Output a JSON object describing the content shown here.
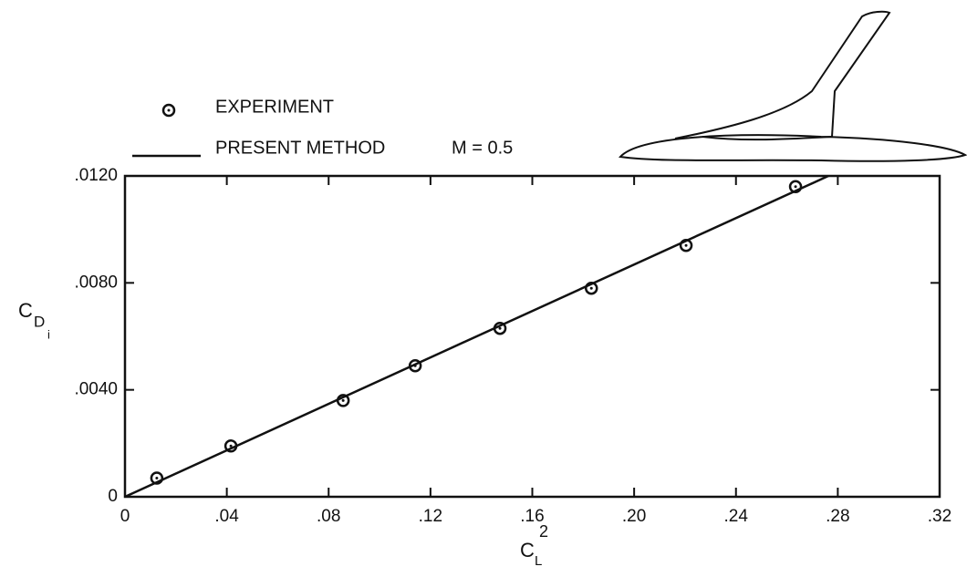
{
  "chart_data": {
    "type": "line",
    "legend": "top-left",
    "annotation": "M = 0.5",
    "x_label": {
      "main": "C",
      "sub": "L",
      "sup": "2"
    },
    "y_label": {
      "main": "C",
      "sub": "D",
      "subsub": "i"
    },
    "xlim": [
      0,
      0.32
    ],
    "ylim": [
      0,
      0.012
    ],
    "xticks": [
      0,
      {
        "value": 0.04,
        "label": ".04"
      },
      {
        "value": 0.08,
        "label": ".08"
      },
      {
        "value": 0.12,
        "label": ".12"
      },
      {
        "value": 0.16,
        "label": ".16"
      },
      {
        "value": 0.2,
        "label": ".20"
      },
      {
        "value": 0.24,
        "label": ".24"
      },
      {
        "value": 0.28,
        "label": ".28"
      },
      {
        "value": 0.32,
        "label": ".32"
      }
    ],
    "yticks": [
      0,
      {
        "value": 0.004,
        "label": ".0040"
      },
      {
        "value": 0.008,
        "label": ".0080"
      },
      {
        "value": 0.012,
        "label": ".0120"
      }
    ],
    "series": [
      {
        "name": "EXPERIMENT",
        "style": "markers",
        "color": "#111111",
        "x": [
          0.0125,
          0.0416,
          0.0857,
          0.114,
          0.1473,
          0.1832,
          0.2204,
          0.2634
        ],
        "values": [
          0.0007,
          0.0019,
          0.0036,
          0.0049,
          0.0063,
          0.0078,
          0.0094,
          0.0116
        ]
      },
      {
        "name": "PRESENT METHOD",
        "style": "line",
        "color": "#111111",
        "x": [
          0,
          0.2763
        ],
        "values": [
          0,
          0.012
        ]
      }
    ]
  }
}
